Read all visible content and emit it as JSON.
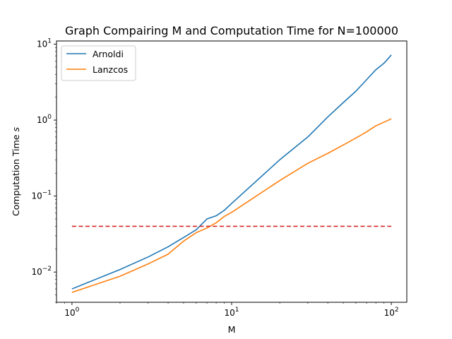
{
  "chart_data": {
    "type": "line",
    "title": "Graph Compairing M and Computation Time for N=100000",
    "xlabel": "M",
    "ylabel": "Computation Time $s$",
    "ylabel_main": "Computation Time ",
    "ylabel_unit": "s",
    "xscale": "log",
    "yscale": "log",
    "xlim": [
      0.8,
      125
    ],
    "ylim": [
      0.004,
      11
    ],
    "grid": false,
    "legend_position": "top-left",
    "x_ticks": [
      {
        "value": 1,
        "base": "10",
        "exp": "0"
      },
      {
        "value": 10,
        "base": "10",
        "exp": "1"
      },
      {
        "value": 100,
        "base": "10",
        "exp": "2"
      }
    ],
    "y_ticks": [
      {
        "value": 0.01,
        "base": "10",
        "exp": "−2"
      },
      {
        "value": 0.1,
        "base": "10",
        "exp": "−1"
      },
      {
        "value": 1,
        "base": "10",
        "exp": "0"
      },
      {
        "value": 10,
        "base": "10",
        "exp": "1"
      }
    ],
    "series": [
      {
        "name": "Arnoldi",
        "color": "#1f77b4",
        "style": "solid",
        "x": [
          1,
          2,
          3,
          4,
          5,
          6,
          7,
          8,
          9,
          10,
          20,
          30,
          40,
          50,
          60,
          70,
          80,
          90,
          100
        ],
        "y": [
          0.006,
          0.0108,
          0.0158,
          0.0215,
          0.0285,
          0.036,
          0.05,
          0.055,
          0.065,
          0.08,
          0.3,
          0.6,
          1.1,
          1.7,
          2.4,
          3.4,
          4.6,
          5.6,
          7.2
        ]
      },
      {
        "name": "Lanzcos",
        "color": "#ff7f0e",
        "style": "solid",
        "x": [
          1,
          2,
          3,
          4,
          5,
          6,
          7,
          8,
          9,
          10,
          20,
          30,
          40,
          50,
          60,
          70,
          80,
          90,
          100
        ],
        "y": [
          0.0054,
          0.0088,
          0.0128,
          0.0172,
          0.0255,
          0.033,
          0.038,
          0.0445,
          0.054,
          0.061,
          0.16,
          0.27,
          0.365,
          0.47,
          0.58,
          0.7,
          0.84,
          0.94,
          1.04
        ]
      },
      {
        "color": "#d62728",
        "style": "dashed",
        "x": [
          1,
          100
        ],
        "y": [
          0.04,
          0.04
        ]
      }
    ]
  }
}
